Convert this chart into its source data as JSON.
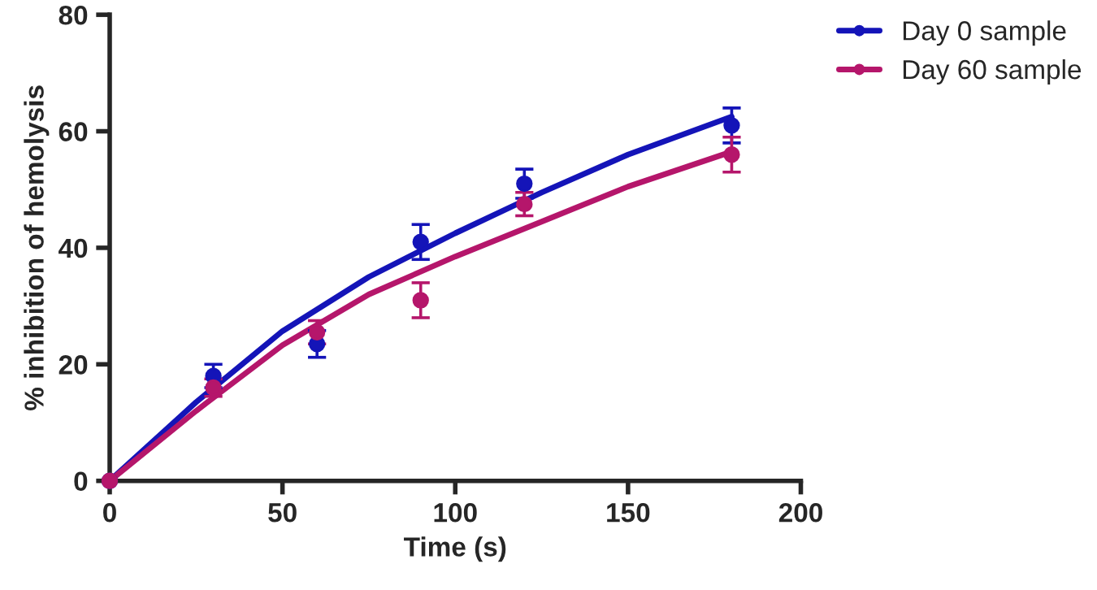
{
  "chart_data": {
    "type": "scatter",
    "xlabel": "Time (s)",
    "ylabel": "% inhibition of hemolysis",
    "xlim": [
      0,
      200
    ],
    "xticks": [
      0,
      50,
      100,
      150,
      200
    ],
    "ylim": [
      0,
      80
    ],
    "yticks": [
      0,
      20,
      40,
      60,
      80
    ],
    "grid": false,
    "legend": "top right",
    "marker": "circle",
    "series": [
      {
        "name": "Day 0 sample",
        "color": "#1414b8",
        "x": [
          0,
          30,
          60,
          90,
          120,
          180
        ],
        "values": [
          0,
          18,
          23.5,
          41,
          51,
          61
        ],
        "errors": [
          null,
          2,
          2.3,
          3,
          2.5,
          3
        ]
      },
      {
        "name": "Day 60 sample",
        "color": "#b5166b",
        "x": [
          0,
          30,
          60,
          90,
          120,
          180
        ],
        "values": [
          0,
          16,
          25.5,
          31,
          47.5,
          56
        ],
        "errors": [
          null,
          1.5,
          2,
          3,
          2,
          3
        ]
      },
      {
        "type": "line",
        "marker": "none",
        "color": "#1414b8",
        "x": [
          0,
          25,
          50,
          75,
          100,
          125,
          150,
          180
        ],
        "values": [
          0,
          13.5,
          25.7,
          35,
          42.5,
          49.5,
          56,
          62.5
        ]
      },
      {
        "type": "line",
        "marker": "none",
        "color": "#b5166b",
        "x": [
          0,
          25,
          50,
          75,
          100,
          125,
          150,
          180
        ],
        "values": [
          0,
          12,
          23.3,
          32,
          38.5,
          44.5,
          50.5,
          56.5
        ]
      }
    ]
  }
}
